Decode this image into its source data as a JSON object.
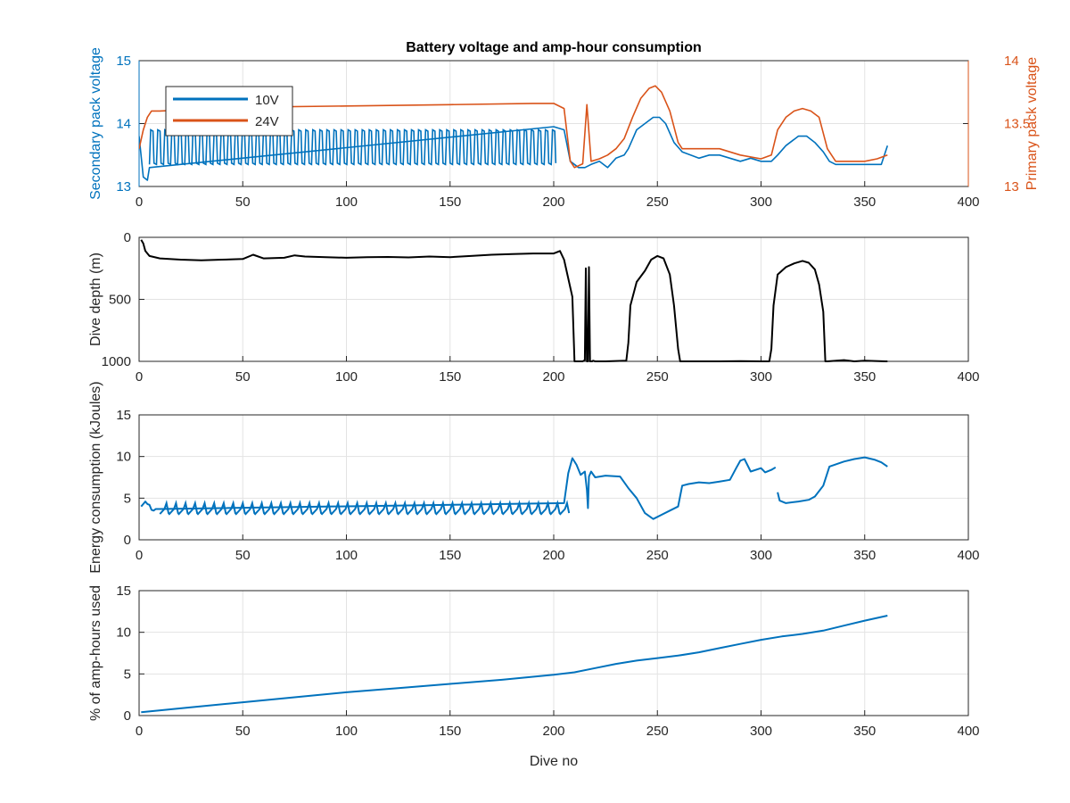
{
  "figure": {
    "title": "Battery voltage and amp-hour consumption"
  },
  "chart_data": [
    {
      "type": "line",
      "title": "Battery voltage and amp-hour consumption",
      "xlabel": "",
      "ylabel_left": "Secondary pack voltage",
      "ylabel_right": "Primary pack voltage",
      "xlim": [
        0,
        400
      ],
      "ylim_left": [
        13,
        15
      ],
      "ylim_right": [
        13,
        14
      ],
      "xticks": [
        0,
        50,
        100,
        150,
        200,
        250,
        300,
        350,
        400
      ],
      "yticks_left": [
        13,
        14,
        15
      ],
      "yticks_right": [
        13,
        13.5,
        14
      ],
      "grid": true,
      "legend": "top-left",
      "series": [
        {
          "name": "10V",
          "axis": "left",
          "color": "#0072BD",
          "x": [
            0,
            2,
            4,
            5,
            200,
            205,
            208,
            212,
            215,
            218,
            222,
            226,
            230,
            234,
            236,
            238,
            240,
            244,
            248,
            251,
            254,
            258,
            262,
            266,
            270,
            275,
            280,
            285,
            290,
            295,
            300,
            305,
            308,
            312,
            318,
            322,
            326,
            330,
            333,
            336,
            340,
            345,
            350,
            355,
            358,
            361
          ],
          "y": [
            13.8,
            13.15,
            13.1,
            13.3,
            13.95,
            13.9,
            13.4,
            13.3,
            13.3,
            13.35,
            13.4,
            13.3,
            13.45,
            13.5,
            13.6,
            13.75,
            13.9,
            14.0,
            14.1,
            14.1,
            14.0,
            13.7,
            13.55,
            13.5,
            13.45,
            13.5,
            13.5,
            13.45,
            13.4,
            13.45,
            13.4,
            13.4,
            13.5,
            13.65,
            13.8,
            13.8,
            13.7,
            13.55,
            13.4,
            13.35,
            13.35,
            13.35,
            13.35,
            13.35,
            13.35,
            13.65
          ],
          "note": "oscillates between about 13.35 and 13.9 V for dives 5-200"
        },
        {
          "name": "24V",
          "axis": "right",
          "color": "#D95319",
          "x": [
            0,
            2,
            4,
            6,
            10,
            50,
            100,
            150,
            190,
            200,
            205,
            208,
            210,
            214,
            216,
            218,
            222,
            226,
            230,
            234,
            238,
            242,
            246,
            249,
            252,
            256,
            260,
            262,
            270,
            280,
            290,
            300,
            305,
            308,
            312,
            316,
            320,
            324,
            328,
            332,
            336,
            340,
            350,
            356,
            361
          ],
          "y": [
            13.3,
            13.45,
            13.55,
            13.6,
            13.6,
            13.63,
            13.64,
            13.65,
            13.66,
            13.66,
            13.62,
            13.2,
            13.15,
            13.18,
            13.65,
            13.2,
            13.22,
            13.25,
            13.3,
            13.38,
            13.55,
            13.7,
            13.78,
            13.8,
            13.75,
            13.6,
            13.35,
            13.3,
            13.3,
            13.3,
            13.25,
            13.22,
            13.25,
            13.45,
            13.55,
            13.6,
            13.62,
            13.6,
            13.55,
            13.3,
            13.2,
            13.2,
            13.2,
            13.22,
            13.25
          ]
        }
      ]
    },
    {
      "type": "line",
      "title": "",
      "xlabel": "",
      "ylabel": "Dive depth (m)",
      "xlim": [
        0,
        400
      ],
      "ylim": [
        0,
        1000
      ],
      "y_reversed": true,
      "xticks": [
        0,
        50,
        100,
        150,
        200,
        250,
        300,
        350,
        400
      ],
      "yticks": [
        0,
        500,
        1000
      ],
      "grid": true,
      "series": [
        {
          "color": "#000000",
          "x": [
            1,
            2,
            3,
            5,
            10,
            20,
            30,
            40,
            50,
            55,
            60,
            70,
            75,
            80,
            90,
            100,
            110,
            120,
            130,
            140,
            150,
            160,
            170,
            180,
            190,
            200,
            203,
            205,
            209,
            210,
            214,
            215,
            215.5,
            216,
            216.5,
            217,
            217.5,
            218,
            218.5,
            219,
            220,
            225,
            235,
            236,
            237,
            240,
            244,
            247,
            250,
            253,
            256,
            258,
            260,
            261,
            270,
            280,
            290,
            300,
            302,
            304,
            305,
            306,
            308,
            312,
            316,
            320,
            323,
            326,
            328,
            330,
            331,
            332,
            340,
            345,
            350,
            360,
            361
          ],
          "y": [
            20,
            50,
            110,
            150,
            170,
            180,
            185,
            180,
            175,
            140,
            170,
            165,
            145,
            155,
            160,
            165,
            160,
            158,
            162,
            155,
            160,
            150,
            140,
            135,
            130,
            130,
            110,
            180,
            480,
            1000,
            1000,
            990,
            250,
            1000,
            1000,
            240,
            1000,
            1000,
            1000,
            995,
            1000,
            1000,
            995,
            850,
            550,
            360,
            270,
            180,
            150,
            170,
            300,
            550,
            900,
            1000,
            1000,
            1000,
            998,
            1000,
            1000,
            1000,
            900,
            550,
            300,
            240,
            210,
            190,
            205,
            260,
            380,
            600,
            1000,
            1000,
            990,
            1000,
            995,
            1000,
            1000
          ]
        }
      ]
    },
    {
      "type": "line",
      "title": "",
      "xlabel": "",
      "ylabel": "Energy consumption (kJoules)",
      "xlim": [
        0,
        400
      ],
      "ylim": [
        0,
        15
      ],
      "xticks": [
        0,
        50,
        100,
        150,
        200,
        250,
        300,
        350,
        400
      ],
      "yticks": [
        0,
        5,
        10,
        15
      ],
      "grid": true,
      "series": [
        {
          "color": "#0072BD",
          "segments": [
            {
              "x": [
                1,
                2,
                3,
                4,
                5,
                6,
                7,
                8,
                10,
                205,
                207,
                209,
                211,
                213,
                215,
                216,
                216.5,
                217,
                218,
                220,
                225,
                232,
                236,
                240,
                244,
                248,
                252,
                256,
                260,
                262,
                265,
                270,
                275,
                280,
                285,
                288,
                290,
                292,
                295,
                300,
                302,
                305,
                307
              ],
              "y": [
                4.0,
                4.3,
                4.6,
                4.3,
                4.2,
                3.6,
                3.5,
                3.7,
                3.7,
                4.4,
                8.0,
                9.8,
                9.0,
                7.8,
                8.2,
                6.0,
                3.8,
                7.6,
                8.2,
                7.5,
                7.7,
                7.6,
                6.2,
                5.0,
                3.2,
                2.5,
                3.0,
                3.5,
                4.0,
                6.5,
                6.7,
                6.9,
                6.8,
                7.0,
                7.2,
                8.6,
                9.5,
                9.7,
                8.2,
                8.6,
                8.1,
                8.4,
                8.7
              ]
            },
            {
              "x": [
                308,
                309,
                312,
                318,
                323,
                326,
                330,
                333,
                340,
                345,
                350,
                355,
                358,
                361
              ],
              "y": [
                5.7,
                4.7,
                4.4,
                4.6,
                4.8,
                5.2,
                6.5,
                8.8,
                9.4,
                9.7,
                9.9,
                9.6,
                9.3,
                8.8
              ]
            }
          ],
          "note": "sawtooth between about 3.0 and 4.4 kJ for dives 10-205"
        }
      ]
    },
    {
      "type": "line",
      "title": "",
      "xlabel": "Dive no",
      "ylabel": "% of amp-hours used",
      "xlim": [
        0,
        400
      ],
      "ylim": [
        0,
        15
      ],
      "xticks": [
        0,
        50,
        100,
        150,
        200,
        250,
        300,
        350,
        400
      ],
      "yticks": [
        0,
        5,
        10,
        15
      ],
      "grid": true,
      "series": [
        {
          "color": "#0072BD",
          "x": [
            1,
            25,
            50,
            75,
            100,
            125,
            150,
            175,
            200,
            210,
            220,
            230,
            240,
            250,
            260,
            270,
            280,
            290,
            300,
            310,
            320,
            330,
            340,
            350,
            361
          ],
          "y": [
            0.4,
            1.0,
            1.6,
            2.2,
            2.8,
            3.3,
            3.8,
            4.3,
            4.9,
            5.2,
            5.7,
            6.2,
            6.6,
            6.9,
            7.2,
            7.6,
            8.1,
            8.6,
            9.1,
            9.5,
            9.8,
            10.2,
            10.8,
            11.4,
            12.0
          ]
        }
      ]
    }
  ]
}
